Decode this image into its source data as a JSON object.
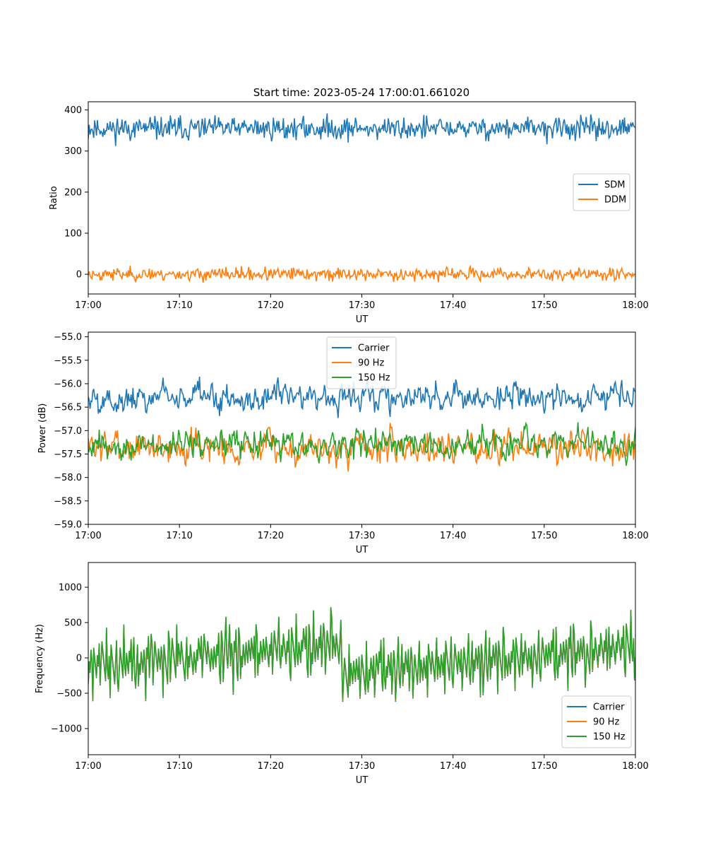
{
  "figure_title": "Start time: 2023-05-24 17:00:01.661020",
  "colors": {
    "carrier": "#1f77b4",
    "sdm": "#1f77b4",
    "ddm": "#ff7f0e",
    "hz90": "#ff7f0e",
    "hz150": "#2ca02c"
  },
  "chart_data": [
    {
      "type": "line",
      "xlabel": "UT",
      "ylabel": "Ratio",
      "x_ticks": [
        "17:00",
        "17:10",
        "17:20",
        "17:30",
        "17:40",
        "17:50",
        "18:00"
      ],
      "x_range_minutes": [
        0,
        60
      ],
      "ylim": [
        -48,
        420
      ],
      "y_ticks": [
        0,
        100,
        200,
        300,
        400
      ],
      "y_tick_labels": [
        "0",
        "100",
        "200",
        "300",
        "400"
      ],
      "legend_loc": "center-right",
      "series": [
        {
          "name": "SDM",
          "color": "#1f77b4",
          "mean": 355,
          "amplitude": 20,
          "seed": 11,
          "values_note": ""
        },
        {
          "name": "DDM",
          "color": "#ff7f0e",
          "mean": 0,
          "amplitude": 11,
          "seed": 23
        }
      ]
    },
    {
      "type": "line",
      "xlabel": "UT",
      "ylabel": "Power (dB)",
      "x_ticks": [
        "17:00",
        "17:10",
        "17:20",
        "17:30",
        "17:40",
        "17:50",
        "18:00"
      ],
      "x_range_minutes": [
        0,
        60
      ],
      "ylim": [
        -59.0,
        -54.9
      ],
      "y_ticks": [
        -59.0,
        -58.5,
        -58.0,
        -57.5,
        -57.0,
        -56.5,
        -56.0,
        -55.5,
        -55.0
      ],
      "y_tick_labels": [
        "−59.0",
        "−58.5",
        "−58.0",
        "−57.5",
        "−57.0",
        "−56.5",
        "−56.0",
        "−55.5",
        "−55.0"
      ],
      "legend_loc": "upper-center",
      "series": [
        {
          "name": "Carrier",
          "color": "#1f77b4",
          "mean": -56.3,
          "amplitude": 0.38,
          "seed": 5
        },
        {
          "name": "90 Hz",
          "color": "#ff7f0e",
          "mean": -57.35,
          "amplitude": 0.42,
          "seed": 7
        },
        {
          "name": "150 Hz",
          "color": "#2ca02c",
          "mean": -57.3,
          "amplitude": 0.38,
          "seed": 9
        }
      ]
    },
    {
      "type": "line",
      "xlabel": "UT",
      "ylabel": "Frequency (Hz)",
      "x_ticks": [
        "17:00",
        "17:10",
        "17:20",
        "17:30",
        "17:40",
        "17:50",
        "18:00"
      ],
      "x_range_minutes": [
        0,
        60
      ],
      "ylim": [
        -1370,
        1350
      ],
      "y_ticks": [
        -1000,
        -500,
        0,
        500,
        1000
      ],
      "y_tick_labels": [
        "−1000",
        "−500",
        "0",
        "500",
        "1000"
      ],
      "legend_loc": "lower-right",
      "series": [
        {
          "name": "Carrier",
          "color": "#1f77b4",
          "mean": 0,
          "amplitude": 360,
          "seed": 31,
          "offset": -30
        },
        {
          "name": "90 Hz",
          "color": "#ff7f0e",
          "mean": 0,
          "amplitude": 360,
          "seed": 31,
          "offset": -12
        },
        {
          "name": "150 Hz",
          "color": "#2ca02c",
          "mean": 0,
          "amplitude": 360,
          "seed": 31,
          "offset": 0
        }
      ]
    }
  ]
}
